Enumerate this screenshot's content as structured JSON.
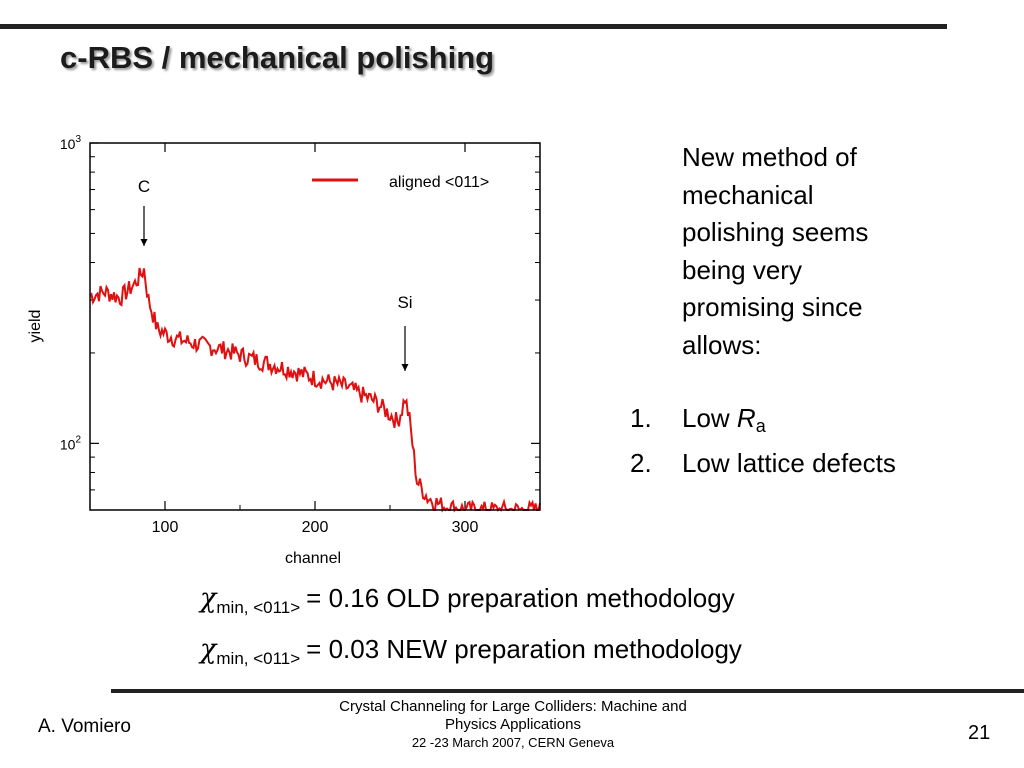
{
  "slide": {
    "title": "c-RBS / mechanical polishing",
    "description_lines": [
      "New method of",
      "mechanical",
      "polishing seems",
      "being very",
      "promising since",
      "allows:"
    ],
    "list": [
      {
        "number": "1.",
        "text": "Low ",
        "symbol": "R",
        "subscript": "a"
      },
      {
        "number": "2.",
        "text": "Low lattice defects"
      }
    ],
    "chi_lines": [
      {
        "symbol": "χ",
        "subscript": "min, <011>",
        "text": "= 0.16 OLD preparation methodology"
      },
      {
        "symbol": "χ",
        "subscript": "min, <011>",
        "text": "= 0.03 NEW preparation methodology"
      }
    ]
  },
  "footer": {
    "author": "A. Vomiero",
    "conference_line1": "Crystal Channeling for Large Colliders: Machine and",
    "conference_line2": "Physics Applications",
    "date_location": "22 -23  March 2007, CERN Geneva",
    "page": "21"
  },
  "chart_data": {
    "type": "line",
    "xlabel": "channel",
    "ylabel": "yield",
    "xlim": [
      50,
      350
    ],
    "ylim": [
      60,
      1000
    ],
    "yscale": "log",
    "x_ticks": [
      100,
      200,
      300
    ],
    "y_tick_labels": [
      {
        "base": "10",
        "exp": "3",
        "value": 1000
      },
      {
        "base": "10",
        "exp": "2",
        "value": 100
      }
    ],
    "grid": false,
    "legend_position": "top-right",
    "series": [
      {
        "name": "aligned <011>",
        "color": "#e01010",
        "x": [
          50,
          60,
          70,
          80,
          86,
          89,
          95,
          105,
          120,
          140,
          160,
          180,
          200,
          220,
          240,
          250,
          255,
          258,
          260,
          263,
          268,
          275,
          285,
          300,
          320,
          340,
          350
        ],
        "y": [
          310,
          320,
          305,
          340,
          380,
          300,
          240,
          225,
          215,
          205,
          190,
          178,
          165,
          155,
          138,
          125,
          118,
          130,
          142,
          120,
          75,
          66,
          62,
          60,
          60,
          60,
          60
        ]
      }
    ],
    "annotations": [
      {
        "label": "C",
        "x": 86
      },
      {
        "label": "Si",
        "x": 260
      }
    ]
  }
}
